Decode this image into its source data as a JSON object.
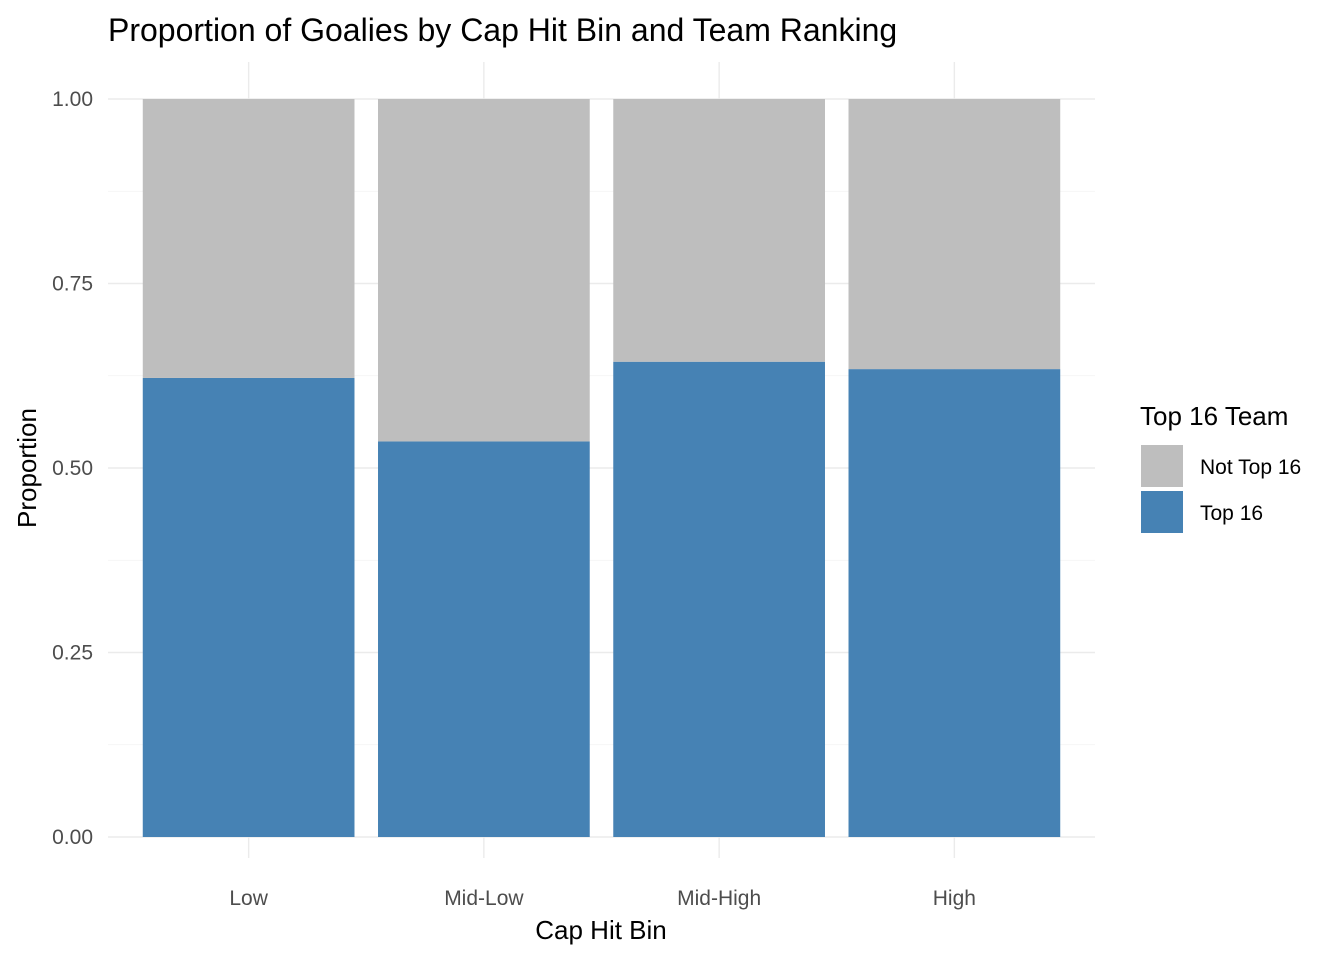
{
  "chart_data": {
    "type": "bar",
    "stacked": true,
    "title": "Proportion of Goalies by Cap Hit Bin and Team Ranking",
    "xlabel": "Cap Hit Bin",
    "ylabel": "Proportion",
    "categories": [
      "Low",
      "Mid-Low",
      "Mid-High",
      "High"
    ],
    "ylim": [
      0,
      1
    ],
    "yticks": [
      "0.00",
      "0.25",
      "0.50",
      "0.75",
      "1.00"
    ],
    "ytick_values": [
      0,
      0.25,
      0.5,
      0.75,
      1.0
    ],
    "grid": true,
    "legend": {
      "title": "Top 16 Team",
      "placement": "right"
    },
    "series": [
      {
        "name": "Top 16",
        "color": "#4682B4",
        "values": [
          0.622,
          0.536,
          0.644,
          0.634
        ]
      },
      {
        "name": "Not Top 16",
        "color": "#BEBEBE",
        "values": [
          0.378,
          0.464,
          0.356,
          0.366
        ]
      }
    ],
    "legend_order": [
      "Not Top 16",
      "Top 16"
    ]
  }
}
